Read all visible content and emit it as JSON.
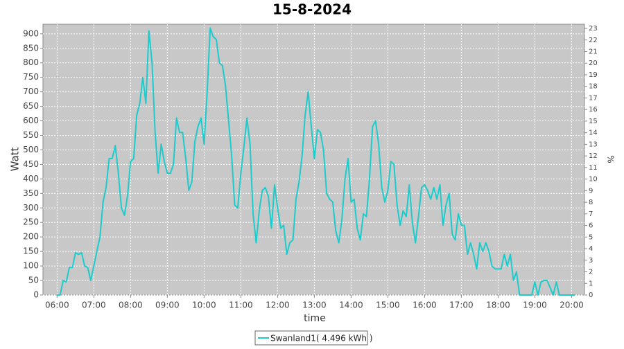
{
  "chart_data": {
    "type": "line",
    "title": "15-8-2024",
    "xlabel": "time",
    "ylabel": "Watt",
    "y2label": "%",
    "xlim": [
      "05:37",
      "20:21"
    ],
    "xticks": [
      "06:00",
      "07:00",
      "08:00",
      "09:00",
      "10:00",
      "11:00",
      "12:00",
      "13:00",
      "14:00",
      "15:00",
      "16:00",
      "17:00",
      "18:00",
      "19:00",
      "20:00"
    ],
    "ylim": [
      0,
      933
    ],
    "yticks": [
      0,
      50,
      100,
      150,
      200,
      250,
      300,
      350,
      400,
      450,
      500,
      550,
      600,
      650,
      700,
      750,
      800,
      850,
      900
    ],
    "y2lim": [
      0,
      23.36
    ],
    "y2ticks": [
      0,
      1,
      2,
      3,
      4,
      5,
      6,
      7,
      8,
      9,
      10,
      11,
      12,
      13,
      14,
      15,
      16,
      17,
      18,
      19,
      20,
      21,
      22,
      23
    ],
    "grid": true,
    "background": "#c8c8c8",
    "x": [
      "06:00",
      "06:05",
      "06:10",
      "06:15",
      "06:20",
      "06:25",
      "06:30",
      "06:35",
      "06:40",
      "06:45",
      "06:50",
      "06:55",
      "07:00",
      "07:05",
      "07:10",
      "07:15",
      "07:20",
      "07:25",
      "07:30",
      "07:35",
      "07:40",
      "07:45",
      "07:50",
      "07:55",
      "08:00",
      "08:05",
      "08:10",
      "08:15",
      "08:20",
      "08:25",
      "08:30",
      "08:35",
      "08:40",
      "08:45",
      "08:50",
      "08:55",
      "09:00",
      "09:05",
      "09:10",
      "09:15",
      "09:20",
      "09:25",
      "09:30",
      "09:35",
      "09:40",
      "09:45",
      "09:50",
      "09:55",
      "10:00",
      "10:05",
      "10:10",
      "10:15",
      "10:20",
      "10:25",
      "10:30",
      "10:35",
      "10:40",
      "10:45",
      "10:50",
      "10:55",
      "11:00",
      "11:05",
      "11:10",
      "11:15",
      "11:20",
      "11:25",
      "11:30",
      "11:35",
      "11:40",
      "11:45",
      "11:50",
      "11:55",
      "12:00",
      "12:05",
      "12:10",
      "12:15",
      "12:20",
      "12:25",
      "12:30",
      "12:35",
      "12:40",
      "12:45",
      "12:50",
      "12:55",
      "13:00",
      "13:05",
      "13:10",
      "13:15",
      "13:20",
      "13:25",
      "13:30",
      "13:35",
      "13:40",
      "13:45",
      "13:50",
      "13:55",
      "14:00",
      "14:05",
      "14:10",
      "14:15",
      "14:20",
      "14:25",
      "14:30",
      "14:35",
      "14:40",
      "14:45",
      "14:50",
      "14:55",
      "15:00",
      "15:05",
      "15:10",
      "15:15",
      "15:20",
      "15:25",
      "15:30",
      "15:35",
      "15:40",
      "15:45",
      "15:50",
      "15:55",
      "16:00",
      "16:05",
      "16:10",
      "16:15",
      "16:20",
      "16:25",
      "16:30",
      "16:35",
      "16:40",
      "16:45",
      "16:50",
      "16:55",
      "17:00",
      "17:05",
      "17:10",
      "17:15",
      "17:20",
      "17:25",
      "17:30",
      "17:35",
      "17:40",
      "17:45",
      "17:50",
      "17:55",
      "18:00",
      "18:05",
      "18:10",
      "18:15",
      "18:20",
      "18:25",
      "18:30",
      "18:35",
      "18:40",
      "18:45",
      "18:50",
      "18:55",
      "19:00",
      "19:05",
      "19:10",
      "19:15",
      "19:20",
      "19:25",
      "19:30",
      "19:35",
      "19:40",
      "19:45",
      "19:50",
      "19:55",
      "20:00",
      "20:05"
    ],
    "series": [
      {
        "name": "Swanland1( 4.496 kWh )",
        "color": "#1ccccc",
        "values": [
          0,
          0,
          50,
          45,
          95,
          95,
          145,
          140,
          145,
          100,
          95,
          50,
          100,
          150,
          200,
          320,
          370,
          470,
          470,
          515,
          420,
          300,
          275,
          340,
          460,
          470,
          620,
          660,
          750,
          660,
          910,
          800,
          560,
          420,
          520,
          460,
          420,
          420,
          450,
          610,
          560,
          560,
          470,
          360,
          390,
          530,
          580,
          610,
          520,
          700,
          920,
          890,
          880,
          800,
          790,
          720,
          600,
          480,
          310,
          300,
          420,
          510,
          610,
          520,
          280,
          180,
          290,
          360,
          370,
          340,
          230,
          380,
          300,
          230,
          240,
          140,
          180,
          190,
          330,
          390,
          480,
          620,
          700,
          580,
          470,
          570,
          560,
          500,
          350,
          330,
          320,
          220,
          180,
          260,
          400,
          470,
          320,
          330,
          230,
          190,
          280,
          270,
          400,
          580,
          600,
          520,
          370,
          320,
          360,
          460,
          450,
          310,
          240,
          290,
          270,
          380,
          250,
          180,
          270,
          370,
          380,
          360,
          330,
          370,
          330,
          380,
          240,
          310,
          350,
          210,
          190,
          280,
          240,
          240,
          140,
          180,
          140,
          90,
          180,
          150,
          180,
          150,
          100,
          90,
          90,
          90,
          140,
          100,
          140,
          50,
          80,
          0,
          0,
          0,
          0,
          0,
          45,
          0,
          45,
          50,
          50,
          25,
          0,
          45,
          0,
          0,
          0,
          0,
          0,
          0
        ]
      }
    ]
  }
}
